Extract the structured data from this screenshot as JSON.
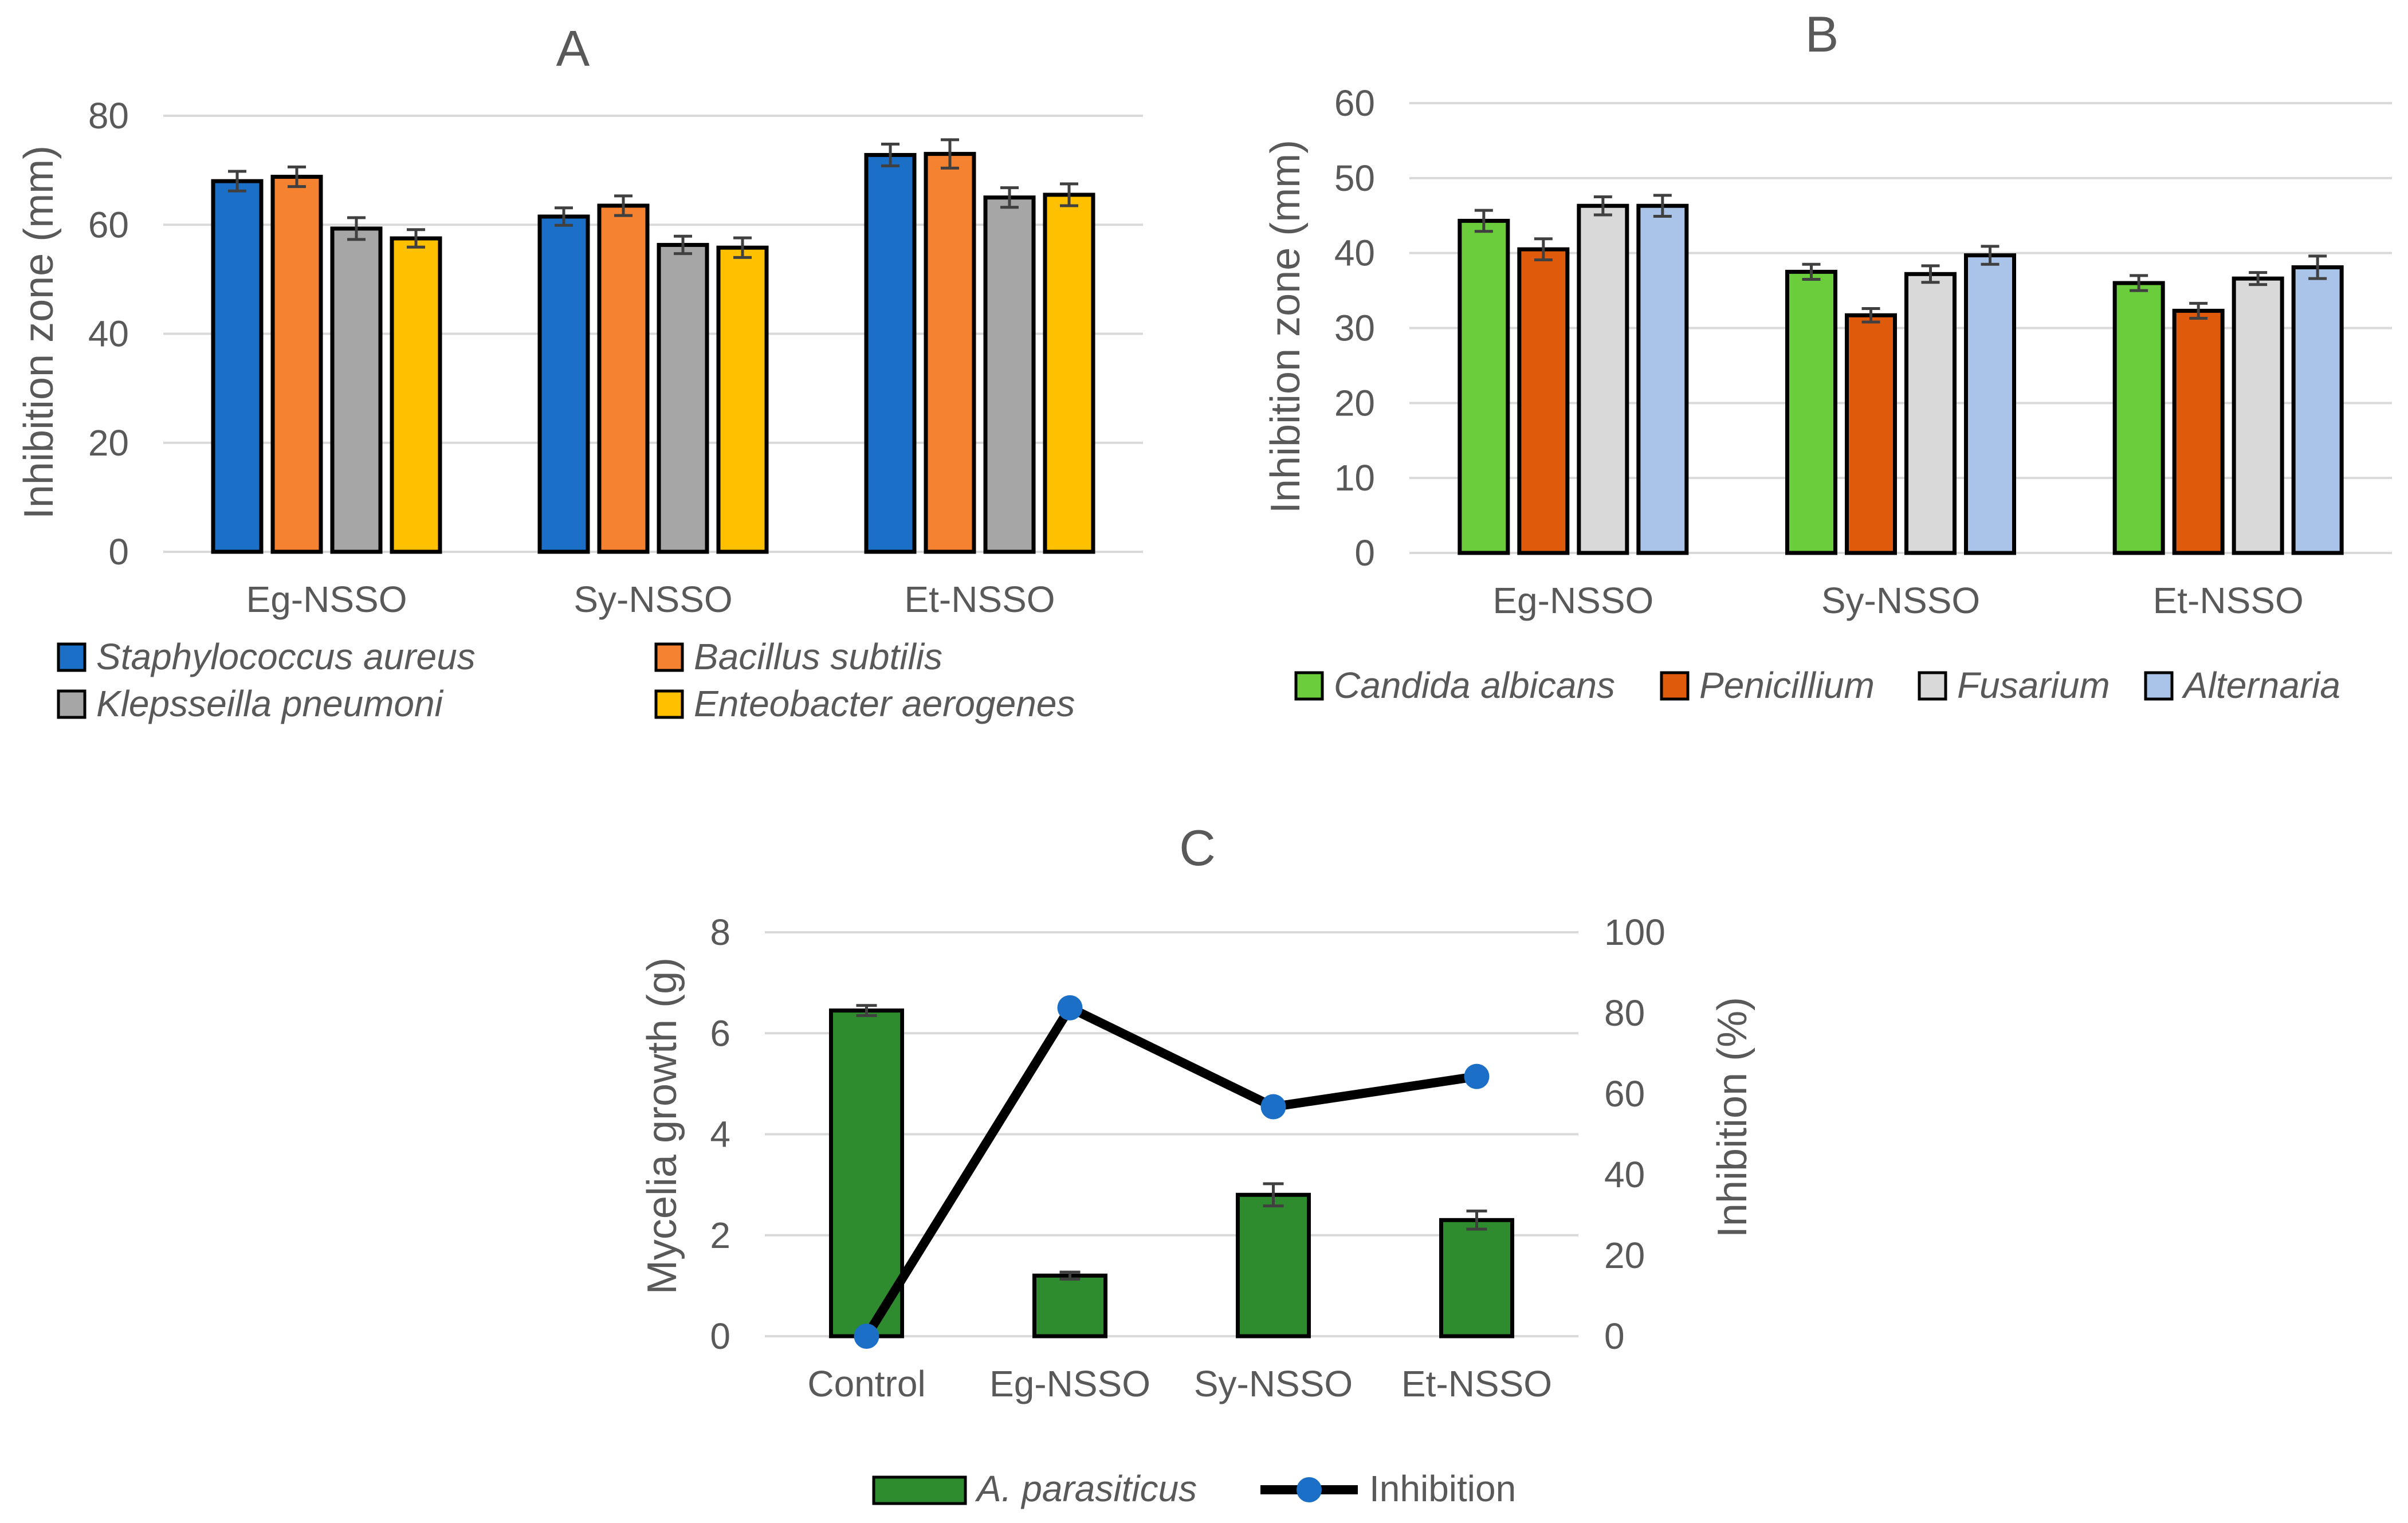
{
  "chart_data": [
    {
      "id": "A",
      "type": "bar",
      "title": "A",
      "xlabel": "",
      "ylabel": "Inhibition zone (mm)",
      "ylim": [
        0,
        80
      ],
      "yticks": [
        0,
        20,
        40,
        60,
        80
      ],
      "categories": [
        "Eg-NSSO",
        "Sy-NSSO",
        "Et-NSSO"
      ],
      "series": [
        {
          "name": "Staphylococcus aureus",
          "color": "#1c6fc7",
          "italic": true,
          "values": [
            68,
            61.5,
            72.8
          ],
          "errors": [
            1.8,
            1.6,
            2.0
          ]
        },
        {
          "name": "Bacillus subtilis",
          "color": "#f58231",
          "italic": true,
          "values": [
            68.8,
            63.5,
            73
          ],
          "errors": [
            1.8,
            1.8,
            2.6
          ]
        },
        {
          "name": "Klepsseilla pneumoni",
          "color": "#a6a6a6",
          "italic": true,
          "values": [
            59.3,
            56.3,
            65
          ],
          "errors": [
            2.0,
            1.6,
            1.8
          ]
        },
        {
          "name": "Enteobacter aerogenes",
          "color": "#ffc000",
          "italic": true,
          "values": [
            57.5,
            55.8,
            65.5
          ],
          "errors": [
            1.6,
            1.8,
            2.0
          ]
        }
      ],
      "legend_position": "bottom"
    },
    {
      "id": "B",
      "type": "bar",
      "title": "B",
      "xlabel": "",
      "ylabel": "Inhibition zone (mm)",
      "ylim": [
        0,
        60
      ],
      "yticks": [
        0,
        10,
        20,
        30,
        40,
        50,
        60
      ],
      "categories": [
        "Eg-NSSO",
        "Sy-NSSO",
        "Et-NSSO"
      ],
      "series": [
        {
          "name": "Candida albicans",
          "color": "#6ccd3c",
          "italic": true,
          "values": [
            44.3,
            37.5,
            36
          ],
          "errors": [
            1.4,
            1.0,
            1.0
          ]
        },
        {
          "name": "Penicillium",
          "color": "#e05a0c",
          "italic": true,
          "values": [
            40.5,
            31.7,
            32.3
          ],
          "errors": [
            1.4,
            0.9,
            1.0
          ]
        },
        {
          "name": "Fusarium",
          "color": "#d9d9d9",
          "italic": true,
          "values": [
            46.3,
            37.2,
            36.6
          ],
          "errors": [
            1.2,
            1.1,
            0.8
          ]
        },
        {
          "name": "Alternaria",
          "color": "#a9c4e8",
          "italic": true,
          "values": [
            46.3,
            39.7,
            38.1
          ],
          "errors": [
            1.4,
            1.2,
            1.5
          ]
        }
      ],
      "legend_position": "bottom"
    },
    {
      "id": "C",
      "type": "bar",
      "title": "C",
      "xlabel": "",
      "ylabel": "Mycelia growth (g)",
      "y2label": "Inhibition (%)",
      "ylim": [
        0,
        8
      ],
      "yticks": [
        0,
        2,
        4,
        6,
        8
      ],
      "y2lim": [
        0,
        100
      ],
      "y2ticks": [
        0,
        20,
        40,
        60,
        80,
        100
      ],
      "categories": [
        "Control",
        "Eg-NSSO",
        "Sy-NSSO",
        "Et-NSSO"
      ],
      "series": [
        {
          "name": "A. parasiticus",
          "kind": "bar",
          "axis": "left",
          "color": "#2e8b2e",
          "italic": true,
          "values": [
            6.45,
            1.2,
            2.8,
            2.3
          ],
          "errors": [
            0.1,
            0.07,
            0.22,
            0.18
          ]
        },
        {
          "name": "Inhibition",
          "kind": "line",
          "axis": "right",
          "color": "#000000",
          "marker_color": "#1c6fc7",
          "italic": false,
          "values": [
            0,
            81.3,
            56.8,
            64.3
          ]
        }
      ],
      "legend_position": "bottom"
    }
  ]
}
